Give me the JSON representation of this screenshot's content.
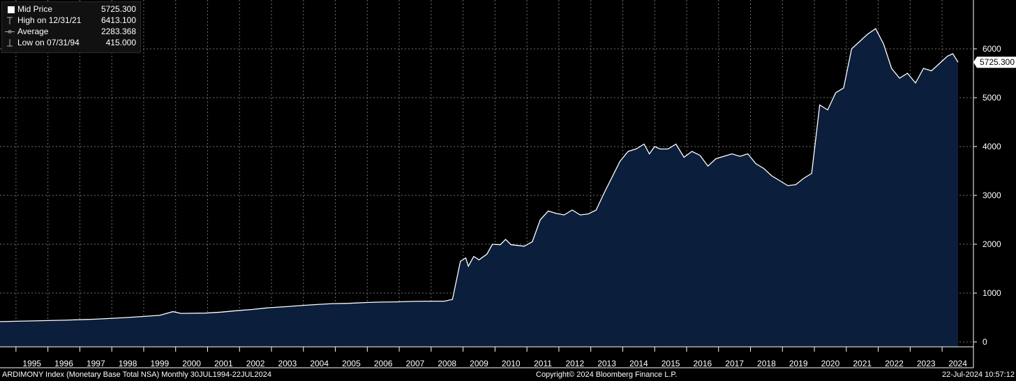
{
  "legend": {
    "items": [
      {
        "label": "Mid Price",
        "value": "5725.300"
      },
      {
        "label": "High on 12/31/21",
        "value": "6413.100"
      },
      {
        "label": "Average",
        "value": "2283.368"
      },
      {
        "label": "Low on 07/31/94",
        "value": "415.000"
      }
    ]
  },
  "footer": {
    "left": "ARDIMONY Index (Monetary Base Total NSA)  Monthly 30JUL1994-22JUL2024",
    "center": "Copyright© 2024 Bloomberg Finance L.P.",
    "right": "22-Jul-2024 10:57:12"
  },
  "colors": {
    "background": "#000000",
    "area_fill": "#0b1e3b",
    "line": "#ffffff",
    "grid": "#6f6f6f"
  },
  "chart_data": {
    "type": "area",
    "title": "",
    "xlabel": "",
    "ylabel": "",
    "x_range": [
      "1994-07",
      "2024-07"
    ],
    "ylim": [
      -100,
      7000
    ],
    "y_ticks": [
      0,
      1000,
      2000,
      3000,
      4000,
      5000,
      6000
    ],
    "x_tick_labels": [
      "1995",
      "1996",
      "1997",
      "1998",
      "1999",
      "2000",
      "2001",
      "2002",
      "2003",
      "2004",
      "2005",
      "2006",
      "2007",
      "2008",
      "2009",
      "2010",
      "2011",
      "2012",
      "2013",
      "2014",
      "2015",
      "2016",
      "2017",
      "2018",
      "2019",
      "2020",
      "2021",
      "2022",
      "2023",
      "2024"
    ],
    "last_value_label": "5725.300",
    "grid": true,
    "series": [
      {
        "name": "Mid Price",
        "points": [
          [
            "1994-07",
            415
          ],
          [
            "1995-07",
            430
          ],
          [
            "1996-07",
            445
          ],
          [
            "1997-07",
            465
          ],
          [
            "1998-07",
            500
          ],
          [
            "1999-07",
            545
          ],
          [
            "1999-12",
            620
          ],
          [
            "2000-03",
            585
          ],
          [
            "2000-12",
            590
          ],
          [
            "2001-06",
            610
          ],
          [
            "2001-12",
            640
          ],
          [
            "2002-06",
            665
          ],
          [
            "2002-12",
            700
          ],
          [
            "2003-06",
            720
          ],
          [
            "2003-12",
            745
          ],
          [
            "2004-06",
            765
          ],
          [
            "2004-12",
            785
          ],
          [
            "2005-06",
            790
          ],
          [
            "2005-12",
            805
          ],
          [
            "2006-06",
            815
          ],
          [
            "2006-12",
            820
          ],
          [
            "2007-06",
            830
          ],
          [
            "2007-12",
            835
          ],
          [
            "2008-06",
            835
          ],
          [
            "2008-09",
            870
          ],
          [
            "2008-12",
            1650
          ],
          [
            "2009-02",
            1720
          ],
          [
            "2009-03",
            1550
          ],
          [
            "2009-05",
            1750
          ],
          [
            "2009-07",
            1680
          ],
          [
            "2009-10",
            1800
          ],
          [
            "2009-12",
            2000
          ],
          [
            "2010-03",
            1990
          ],
          [
            "2010-05",
            2100
          ],
          [
            "2010-07",
            1990
          ],
          [
            "2010-12",
            1960
          ],
          [
            "2011-03",
            2050
          ],
          [
            "2011-06",
            2500
          ],
          [
            "2011-09",
            2680
          ],
          [
            "2011-12",
            2630
          ],
          [
            "2012-03",
            2600
          ],
          [
            "2012-06",
            2700
          ],
          [
            "2012-09",
            2600
          ],
          [
            "2012-12",
            2620
          ],
          [
            "2013-03",
            2700
          ],
          [
            "2013-06",
            3050
          ],
          [
            "2013-12",
            3700
          ],
          [
            "2014-03",
            3900
          ],
          [
            "2014-06",
            3950
          ],
          [
            "2014-09",
            4050
          ],
          [
            "2014-11",
            3850
          ],
          [
            "2015-01",
            4000
          ],
          [
            "2015-03",
            3950
          ],
          [
            "2015-06",
            3950
          ],
          [
            "2015-09",
            4050
          ],
          [
            "2015-12",
            3780
          ],
          [
            "2016-03",
            3900
          ],
          [
            "2016-06",
            3820
          ],
          [
            "2016-09",
            3600
          ],
          [
            "2016-12",
            3750
          ],
          [
            "2017-03",
            3800
          ],
          [
            "2017-06",
            3850
          ],
          [
            "2017-09",
            3800
          ],
          [
            "2017-12",
            3850
          ],
          [
            "2018-03",
            3650
          ],
          [
            "2018-06",
            3550
          ],
          [
            "2018-09",
            3400
          ],
          [
            "2018-12",
            3300
          ],
          [
            "2019-03",
            3200
          ],
          [
            "2019-06",
            3220
          ],
          [
            "2019-09",
            3350
          ],
          [
            "2019-12",
            3450
          ],
          [
            "2020-03",
            4850
          ],
          [
            "2020-06",
            4750
          ],
          [
            "2020-09",
            5100
          ],
          [
            "2020-12",
            5200
          ],
          [
            "2021-03",
            6000
          ],
          [
            "2021-06",
            6150
          ],
          [
            "2021-09",
            6300
          ],
          [
            "2021-12",
            6413.1
          ],
          [
            "2022-03",
            6100
          ],
          [
            "2022-06",
            5600
          ],
          [
            "2022-09",
            5400
          ],
          [
            "2022-12",
            5500
          ],
          [
            "2023-03",
            5300
          ],
          [
            "2023-06",
            5600
          ],
          [
            "2023-09",
            5550
          ],
          [
            "2023-12",
            5700
          ],
          [
            "2024-03",
            5850
          ],
          [
            "2024-05",
            5900
          ],
          [
            "2024-07",
            5725.3
          ]
        ]
      }
    ]
  }
}
